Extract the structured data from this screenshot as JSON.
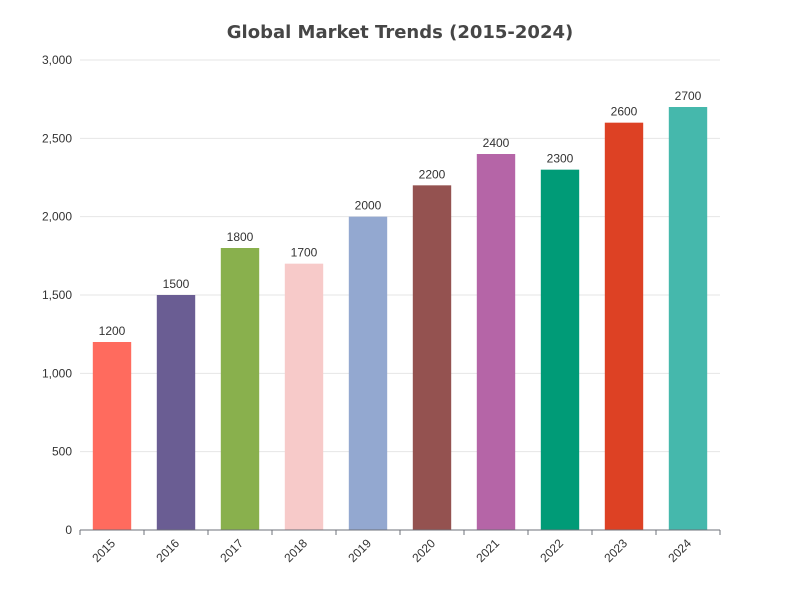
{
  "chart_data": {
    "type": "bar",
    "title": "Global Market Trends (2015-2024)",
    "xlabel": "",
    "ylabel": "",
    "categories": [
      "2015",
      "2016",
      "2017",
      "2018",
      "2019",
      "2020",
      "2021",
      "2022",
      "2023",
      "2024"
    ],
    "values": [
      1200,
      1500,
      1800,
      1700,
      2000,
      2200,
      2400,
      2300,
      2600,
      2700
    ],
    "colors": [
      "#ff6b5e",
      "#6a5d93",
      "#89b04d",
      "#f7cac9",
      "#93a8d0",
      "#945250",
      "#b565a7",
      "#009b77",
      "#dd4124",
      "#45b8ac"
    ],
    "ylim": [
      0,
      3000
    ],
    "yticks": [
      0,
      500,
      1000,
      1500,
      2000,
      2500,
      3000
    ],
    "ytick_labels": [
      "0",
      "500",
      "1,000",
      "1,500",
      "2,000",
      "2,500",
      "3,000"
    ],
    "grid": true,
    "legend": "none",
    "data_labels": true
  }
}
